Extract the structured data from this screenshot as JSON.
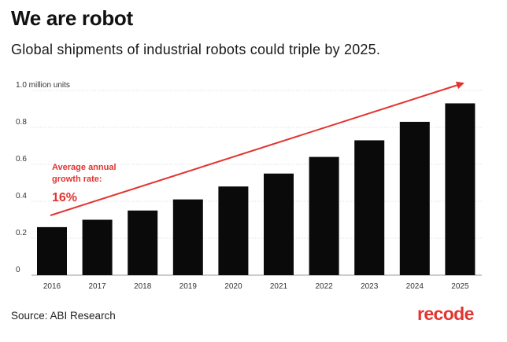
{
  "header": {
    "title": "We are robot",
    "subtitle": "Global shipments of industrial robots could triple by 2025."
  },
  "footer": {
    "source": "Source: ABI Research",
    "brand": "recode"
  },
  "colors": {
    "bar": "#0a0a0a",
    "accent": "#e3342f",
    "grid": "#d6d6d6"
  },
  "chart_data": {
    "type": "bar",
    "categories": [
      "2016",
      "2017",
      "2018",
      "2019",
      "2020",
      "2021",
      "2022",
      "2023",
      "2024",
      "2025"
    ],
    "values": [
      0.26,
      0.3,
      0.35,
      0.41,
      0.48,
      0.55,
      0.64,
      0.73,
      0.83,
      0.93
    ],
    "ylim": [
      0,
      1.0
    ],
    "yticks": [
      0,
      0.2,
      0.4,
      0.6,
      0.8,
      1.0
    ],
    "ytick_labels": [
      "0",
      "0.2",
      "0.4",
      "0.6",
      "0.8",
      "1.0 million units"
    ],
    "grid": true,
    "trend_arrow": true,
    "annotation": {
      "lines": [
        "Average annual",
        "growth rate:"
      ],
      "value": "16%"
    }
  }
}
